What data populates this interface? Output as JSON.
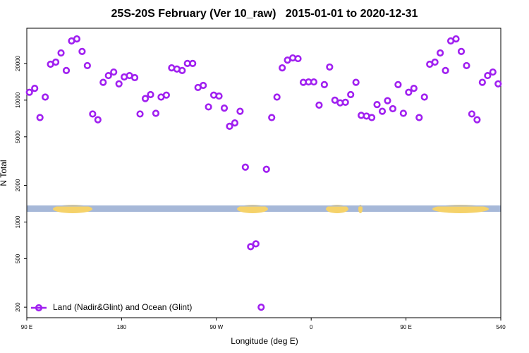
{
  "chart_data": {
    "type": "scatter",
    "title": "25S-20S February (Ver 10_raw)   2015-01-01 to 2020-12-31",
    "xlabel": "Longitude (deg E)",
    "ylabel": "N Total",
    "log_y": true,
    "legend": "bottom-left",
    "xlim": [
      90,
      540
    ],
    "xticks": [
      {
        "value": 90,
        "label": "90 E"
      },
      180,
      {
        "value": 270,
        "label": "90 W"
      },
      {
        "value": 360,
        "label": "0"
      },
      {
        "value": 450,
        "label": "90 E"
      },
      540
    ],
    "ylim": [
      164,
      38900
    ],
    "yticks": [
      200,
      500,
      1000,
      2000,
      5000,
      10000,
      20000
    ],
    "series": [
      {
        "name": "Land (Nadir&Glint) and Ocean (Glint)",
        "color": "#a020f0",
        "x": [
          92.5,
          97.5,
          102.5,
          107.5,
          112.5,
          117.5,
          122.5,
          127.5,
          132.5,
          137.5,
          142.5,
          147.5,
          152.5,
          157.5,
          162.5,
          167.5,
          172.5,
          177.5,
          182.5,
          187.5,
          192.5,
          197.5,
          202.5,
          207.5,
          212.5,
          217.5,
          222.5,
          227.5,
          232.5,
          237.5,
          242.5,
          247.5,
          252.5,
          257.5,
          262.5,
          267.5,
          272.5,
          277.5,
          282.5,
          287.5,
          292.5,
          297.5,
          302.5,
          307.5,
          312.5,
          317.5,
          322.5,
          327.5,
          332.5,
          337.5,
          342.5,
          347.5,
          352.5,
          357.5,
          362.5,
          367.5,
          372.5,
          377.5,
          382.5,
          387.5,
          392.5,
          397.5,
          402.5,
          407.5,
          412.5,
          417.5,
          422.5,
          427.5,
          432.5,
          437.5,
          442.5,
          447.5,
          452.5,
          457.5,
          462.5,
          467.5,
          472.5,
          477.5,
          482.5,
          487.5,
          492.5,
          497.5,
          502.5,
          507.5,
          512.5,
          517.5,
          522.5,
          527.5,
          532.5,
          537.5
        ],
        "values": [
          11600,
          12500,
          7200,
          10600,
          19700,
          20500,
          24400,
          17500,
          30600,
          31800,
          25100,
          19200,
          7700,
          6900,
          14000,
          15900,
          17000,
          13600,
          15500,
          15900,
          15300,
          7700,
          10300,
          11100,
          7800,
          10600,
          11000,
          18400,
          18000,
          17500,
          20000,
          20000,
          12700,
          13200,
          8800,
          11000,
          10800,
          8600,
          6100,
          6500,
          8100,
          2820,
          628,
          662,
          200,
          2710,
          7200,
          10600,
          18400,
          21300,
          22200,
          21900,
          14000,
          14100,
          14100,
          9100,
          13400,
          18700,
          10000,
          9500,
          9600,
          11100,
          14000,
          7500,
          7400,
          7200,
          9200,
          8100,
          9900,
          8500,
          13400,
          7800,
          11600,
          12500,
          7200,
          10600,
          19700,
          20500,
          24400,
          17500,
          30600,
          31800,
          25100,
          19200,
          7700,
          6900,
          14000,
          15900,
          17000,
          13600
        ]
      }
    ]
  }
}
